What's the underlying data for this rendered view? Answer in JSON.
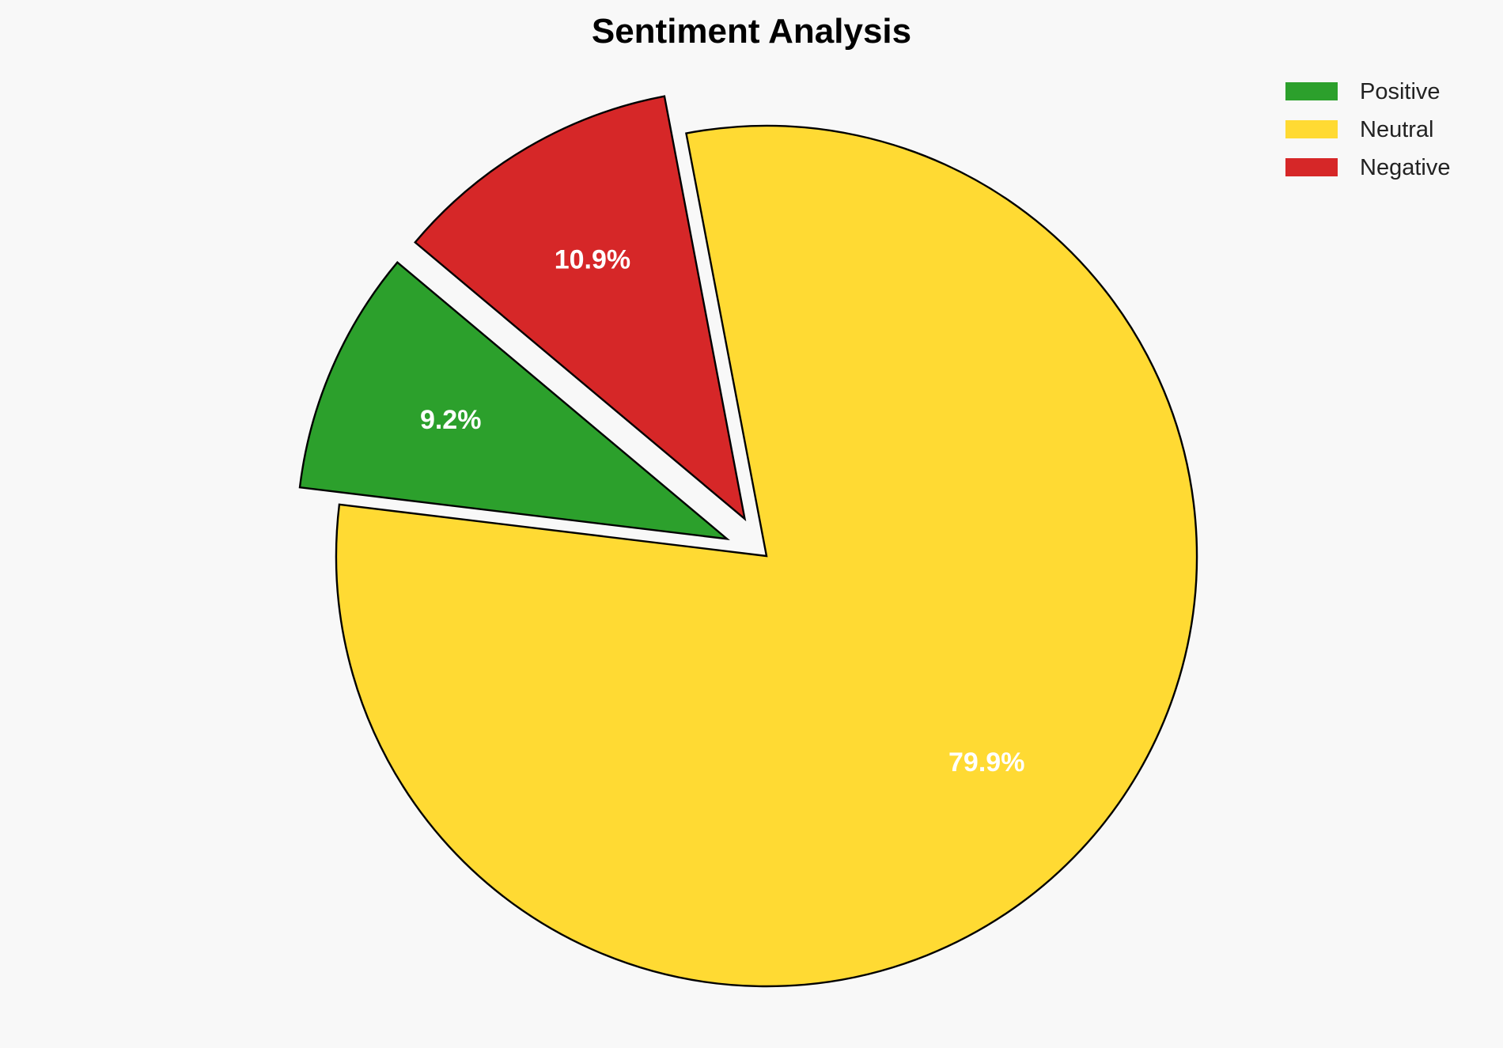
{
  "chart_data": {
    "type": "pie",
    "title": "Sentiment Analysis",
    "categories": [
      "Positive",
      "Neutral",
      "Negative"
    ],
    "values": [
      9.2,
      79.9,
      10.9
    ],
    "value_labels": [
      "9.2%",
      "79.9%",
      "10.9%"
    ],
    "colors": [
      "#2ca02c",
      "#ffda33",
      "#d62728"
    ],
    "explode": [
      0.1,
      0,
      0.1
    ],
    "start_angle": 140,
    "legend_position": "top-right",
    "edge_color": "#000000"
  }
}
